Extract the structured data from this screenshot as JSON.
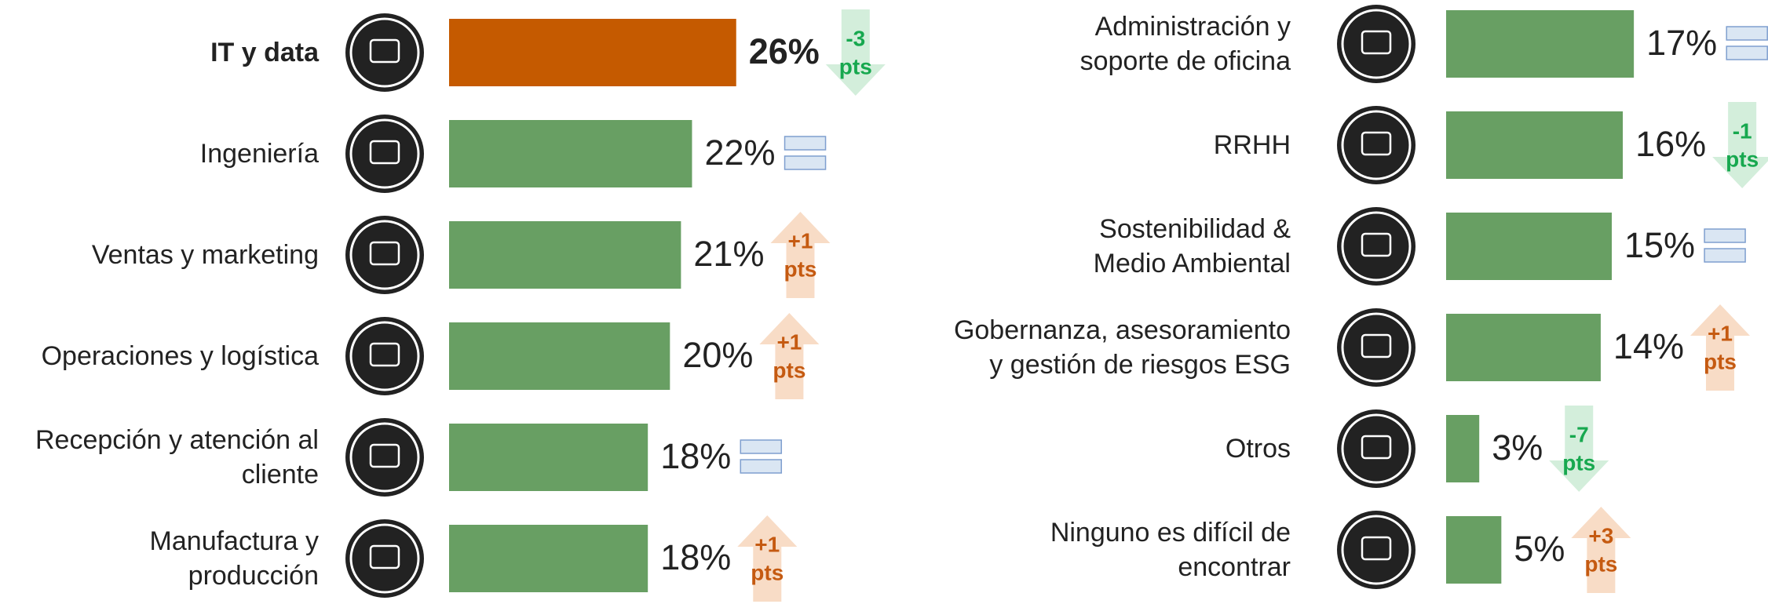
{
  "chart_data": [
    {
      "type": "bar",
      "categories": [
        "IT y data",
        "Ingeniería",
        "Ventas y marketing",
        "Operaciones y logística",
        "Recepción y atención al\ncliente",
        "Manufactura y\nproducción"
      ],
      "values": [
        26,
        22,
        21,
        20,
        18,
        18
      ],
      "value_labels": [
        "26%",
        "22%",
        "21%",
        "20%",
        "18%",
        "18%"
      ],
      "colors": [
        "#c55a00",
        "#689f63",
        "#689f63",
        "#689f63",
        "#689f63",
        "#689f63"
      ],
      "changes": [
        -3,
        0,
        1,
        1,
        0,
        1
      ],
      "change_labels": [
        "-3",
        null,
        "+1",
        "+1",
        null,
        "+1"
      ],
      "change_unit": "pts",
      "xlim": [
        0,
        30
      ]
    },
    {
      "type": "bar",
      "categories": [
        "Administración y\nsoporte de oficina",
        "RRHH",
        "Sostenibilidad &\nMedio Ambiental",
        "Gobernanza, asesoramiento\ny gestión de riesgos ESG",
        "Otros",
        "Ninguno es difícil de\nencontrar"
      ],
      "values": [
        17,
        16,
        15,
        14,
        3,
        5
      ],
      "value_labels": [
        "17%",
        "16%",
        "15%",
        "14%",
        "3%",
        "5%"
      ],
      "colors": [
        "#689f63",
        "#689f63",
        "#689f63",
        "#689f63",
        "#689f63",
        "#689f63"
      ],
      "changes": [
        0,
        -1,
        0,
        1,
        -7,
        3
      ],
      "change_labels": [
        null,
        "-1",
        null,
        "+1",
        "-7",
        "+3"
      ],
      "change_unit": "pts",
      "xlim": [
        0,
        30
      ]
    }
  ]
}
